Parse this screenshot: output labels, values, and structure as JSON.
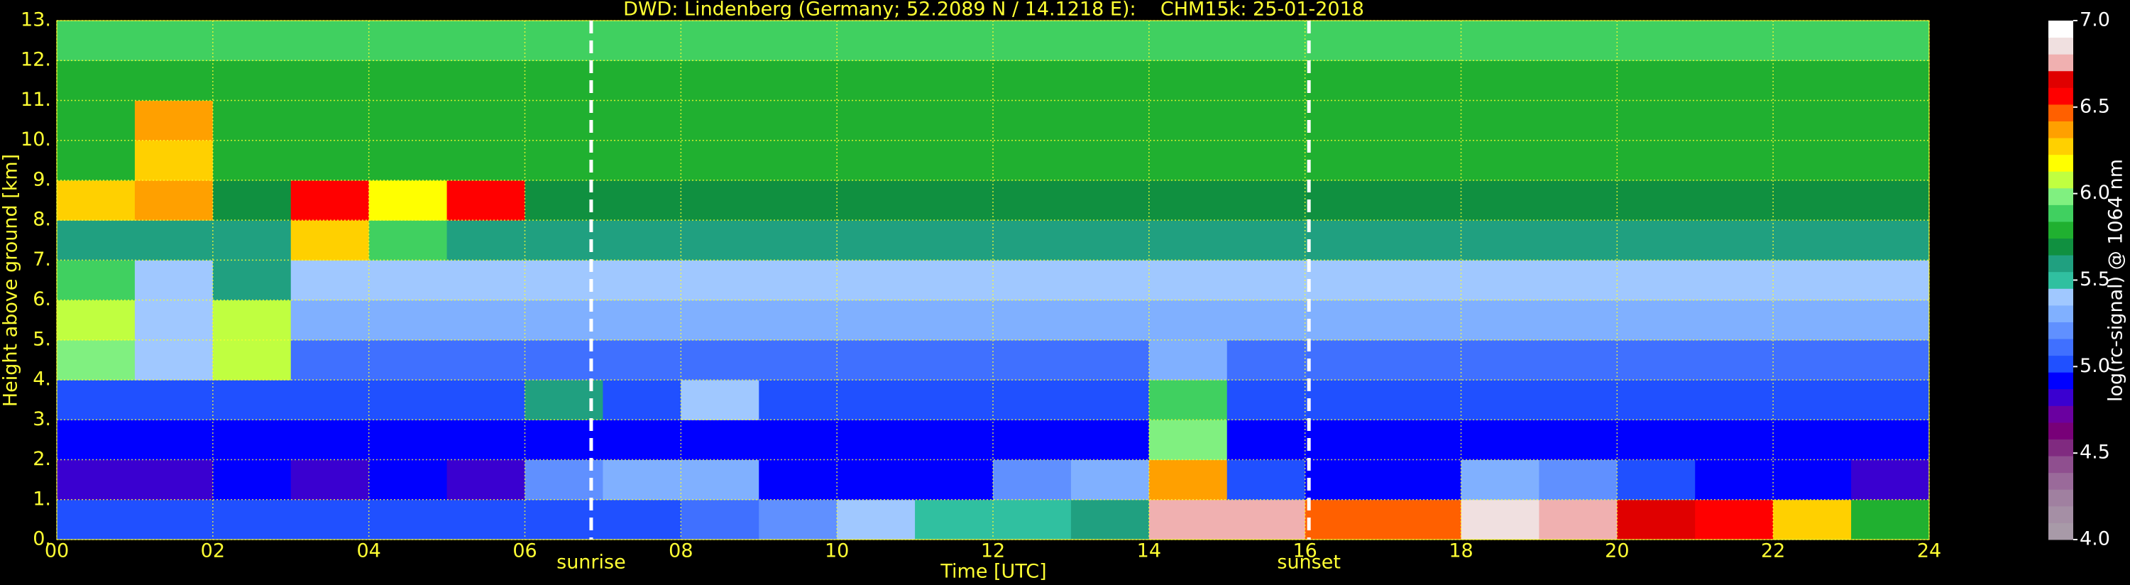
{
  "chart_data": {
    "type": "heatmap",
    "title": "DWD: Lindenberg (Germany; 52.2089 N / 14.1218 E):    CHM15k: 25-01-2018",
    "xlabel": "Time [UTC]",
    "ylabel": "Height above ground [km]",
    "colorbar_label": "log(rc-signal) @ 1064 nm",
    "xlim": [
      0,
      24
    ],
    "ylim": [
      0,
      13
    ],
    "clim": [
      4,
      7
    ],
    "xticks": [
      {
        "value": 0,
        "label": "00"
      },
      {
        "value": 2,
        "label": "02"
      },
      {
        "value": 4,
        "label": "04"
      },
      {
        "value": 6,
        "label": "06"
      },
      {
        "value": 8,
        "label": "08"
      },
      {
        "value": 10,
        "label": "10"
      },
      {
        "value": 12,
        "label": "12"
      },
      {
        "value": 14,
        "label": "14"
      },
      {
        "value": 16,
        "label": "16"
      },
      {
        "value": 18,
        "label": "18"
      },
      {
        "value": 20,
        "label": "20"
      },
      {
        "value": 22,
        "label": "22"
      },
      {
        "value": 24,
        "label": "24"
      }
    ],
    "yticks": [
      {
        "value": 0,
        "label": "0."
      },
      {
        "value": 1,
        "label": "1."
      },
      {
        "value": 2,
        "label": "2."
      },
      {
        "value": 3,
        "label": "3."
      },
      {
        "value": 4,
        "label": "4."
      },
      {
        "value": 5,
        "label": "5."
      },
      {
        "value": 6,
        "label": "6."
      },
      {
        "value": 7,
        "label": "7."
      },
      {
        "value": 8,
        "label": "8."
      },
      {
        "value": 9,
        "label": "9."
      },
      {
        "value": 10,
        "label": "10."
      },
      {
        "value": 11,
        "label": "11."
      },
      {
        "value": 12,
        "label": "12."
      },
      {
        "value": 13,
        "label": "13."
      }
    ],
    "cticks": [
      {
        "value": 4,
        "label": "4.0"
      },
      {
        "value": 4.5,
        "label": "4.5"
      },
      {
        "value": 5,
        "label": "5.0"
      },
      {
        "value": 5.5,
        "label": "5.5"
      },
      {
        "value": 6,
        "label": "6.0"
      },
      {
        "value": 6.5,
        "label": "6.5"
      },
      {
        "value": 7,
        "label": "7.0"
      }
    ],
    "grid": true,
    "colorscale": [
      "#a89aa8",
      "#a58fa5",
      "#a080a0",
      "#9a6a9a",
      "#8f4f8f",
      "#802a80",
      "#780078",
      "#6a00a0",
      "#3a00d0",
      "#0000ff",
      "#2050ff",
      "#4070ff",
      "#6090ff",
      "#80b0ff",
      "#a0c8ff",
      "#30c0a0",
      "#20a080",
      "#109040",
      "#20b030",
      "#40d060",
      "#80f080",
      "#c0ff40",
      "#ffff00",
      "#ffd000",
      "#ffa000",
      "#ff6000",
      "#ff0000",
      "#e00000",
      "#f0b0b0",
      "#f0e0e0",
      "#ffffff"
    ],
    "xbins": [
      0,
      1,
      2,
      3,
      4,
      5,
      6,
      7,
      8,
      9,
      10,
      11,
      12,
      13,
      14,
      15,
      16,
      17,
      18,
      19,
      20,
      21,
      22,
      23,
      24
    ],
    "ybins": [
      0,
      1,
      2,
      3,
      4,
      5,
      6,
      7,
      8,
      9,
      10,
      11,
      12,
      13
    ],
    "z": [
      [
        5.0,
        5.0,
        5.0,
        5.0,
        5.0,
        5.0,
        5.0,
        5.0,
        5.1,
        5.2,
        5.4,
        5.5,
        5.5,
        5.6,
        6.8,
        6.8,
        6.5,
        6.5,
        6.9,
        6.8,
        6.7,
        6.6,
        6.3,
        5.8
      ],
      [
        4.8,
        4.8,
        4.9,
        4.8,
        4.9,
        4.8,
        5.2,
        5.3,
        5.3,
        4.9,
        4.9,
        4.9,
        5.2,
        5.3,
        6.4,
        5.0,
        4.9,
        4.9,
        5.3,
        5.2,
        5.0,
        4.9,
        4.9,
        4.8
      ],
      [
        4.9,
        4.9,
        4.9,
        4.9,
        4.9,
        4.9,
        4.9,
        4.9,
        4.9,
        4.9,
        4.9,
        4.9,
        4.9,
        4.9,
        6.0,
        4.9,
        4.9,
        4.9,
        4.9,
        4.9,
        4.9,
        4.9,
        4.9,
        4.9
      ],
      [
        5.0,
        5.0,
        5.0,
        5.0,
        5.0,
        5.0,
        5.6,
        5.0,
        5.4,
        5.0,
        5.0,
        5.0,
        5.0,
        5.0,
        5.9,
        5.0,
        5.0,
        5.0,
        5.0,
        5.0,
        5.0,
        5.0,
        5.0,
        5.0
      ],
      [
        6.0,
        5.4,
        6.1,
        5.1,
        5.1,
        5.1,
        5.1,
        5.1,
        5.1,
        5.1,
        5.1,
        5.1,
        5.1,
        5.1,
        5.3,
        5.1,
        5.1,
        5.1,
        5.1,
        5.1,
        5.1,
        5.1,
        5.1,
        5.1
      ],
      [
        6.1,
        5.4,
        6.1,
        5.3,
        5.3,
        5.3,
        5.3,
        5.3,
        5.3,
        5.3,
        5.3,
        5.3,
        5.3,
        5.3,
        5.3,
        5.3,
        5.3,
        5.3,
        5.3,
        5.3,
        5.3,
        5.3,
        5.3,
        5.3
      ],
      [
        5.9,
        5.4,
        5.6,
        5.4,
        5.4,
        5.4,
        5.4,
        5.4,
        5.4,
        5.4,
        5.4,
        5.4,
        5.4,
        5.4,
        5.4,
        5.4,
        5.4,
        5.4,
        5.4,
        5.4,
        5.4,
        5.4,
        5.4,
        5.4
      ],
      [
        5.6,
        5.6,
        5.6,
        6.3,
        5.9,
        5.6,
        5.6,
        5.6,
        5.6,
        5.6,
        5.6,
        5.6,
        5.6,
        5.6,
        5.6,
        5.6,
        5.6,
        5.6,
        5.6,
        5.6,
        5.6,
        5.6,
        5.6,
        5.6
      ],
      [
        6.3,
        6.4,
        5.7,
        6.6,
        6.2,
        6.6,
        5.7,
        5.7,
        5.7,
        5.7,
        5.7,
        5.7,
        5.7,
        5.7,
        5.7,
        5.7,
        5.7,
        5.7,
        5.7,
        5.7,
        5.7,
        5.7,
        5.7,
        5.7
      ],
      [
        5.8,
        6.3,
        5.8,
        5.8,
        5.8,
        5.8,
        5.8,
        5.8,
        5.8,
        5.8,
        5.8,
        5.8,
        5.8,
        5.8,
        5.8,
        5.8,
        5.8,
        5.8,
        5.8,
        5.8,
        5.8,
        5.8,
        5.8,
        5.8
      ],
      [
        5.8,
        6.4,
        5.8,
        5.8,
        5.8,
        5.8,
        5.8,
        5.8,
        5.8,
        5.8,
        5.8,
        5.8,
        5.8,
        5.8,
        5.8,
        5.8,
        5.8,
        5.8,
        5.8,
        5.8,
        5.8,
        5.8,
        5.8,
        5.8
      ],
      [
        5.8,
        5.8,
        5.8,
        5.8,
        5.8,
        5.8,
        5.8,
        5.8,
        5.8,
        5.8,
        5.8,
        5.8,
        5.8,
        5.8,
        5.8,
        5.8,
        5.8,
        5.8,
        5.8,
        5.8,
        5.8,
        5.8,
        5.8,
        5.8
      ],
      [
        5.9,
        5.9,
        5.9,
        5.9,
        5.9,
        5.9,
        5.9,
        5.9,
        5.9,
        5.9,
        5.9,
        5.9,
        5.9,
        5.9,
        5.9,
        5.9,
        5.9,
        5.9,
        5.9,
        5.9,
        5.9,
        5.9,
        5.9,
        5.9
      ]
    ],
    "annotations": [
      {
        "x": 6.85,
        "label": "sunrise"
      },
      {
        "x": 16.05,
        "label": "sunset"
      }
    ]
  }
}
